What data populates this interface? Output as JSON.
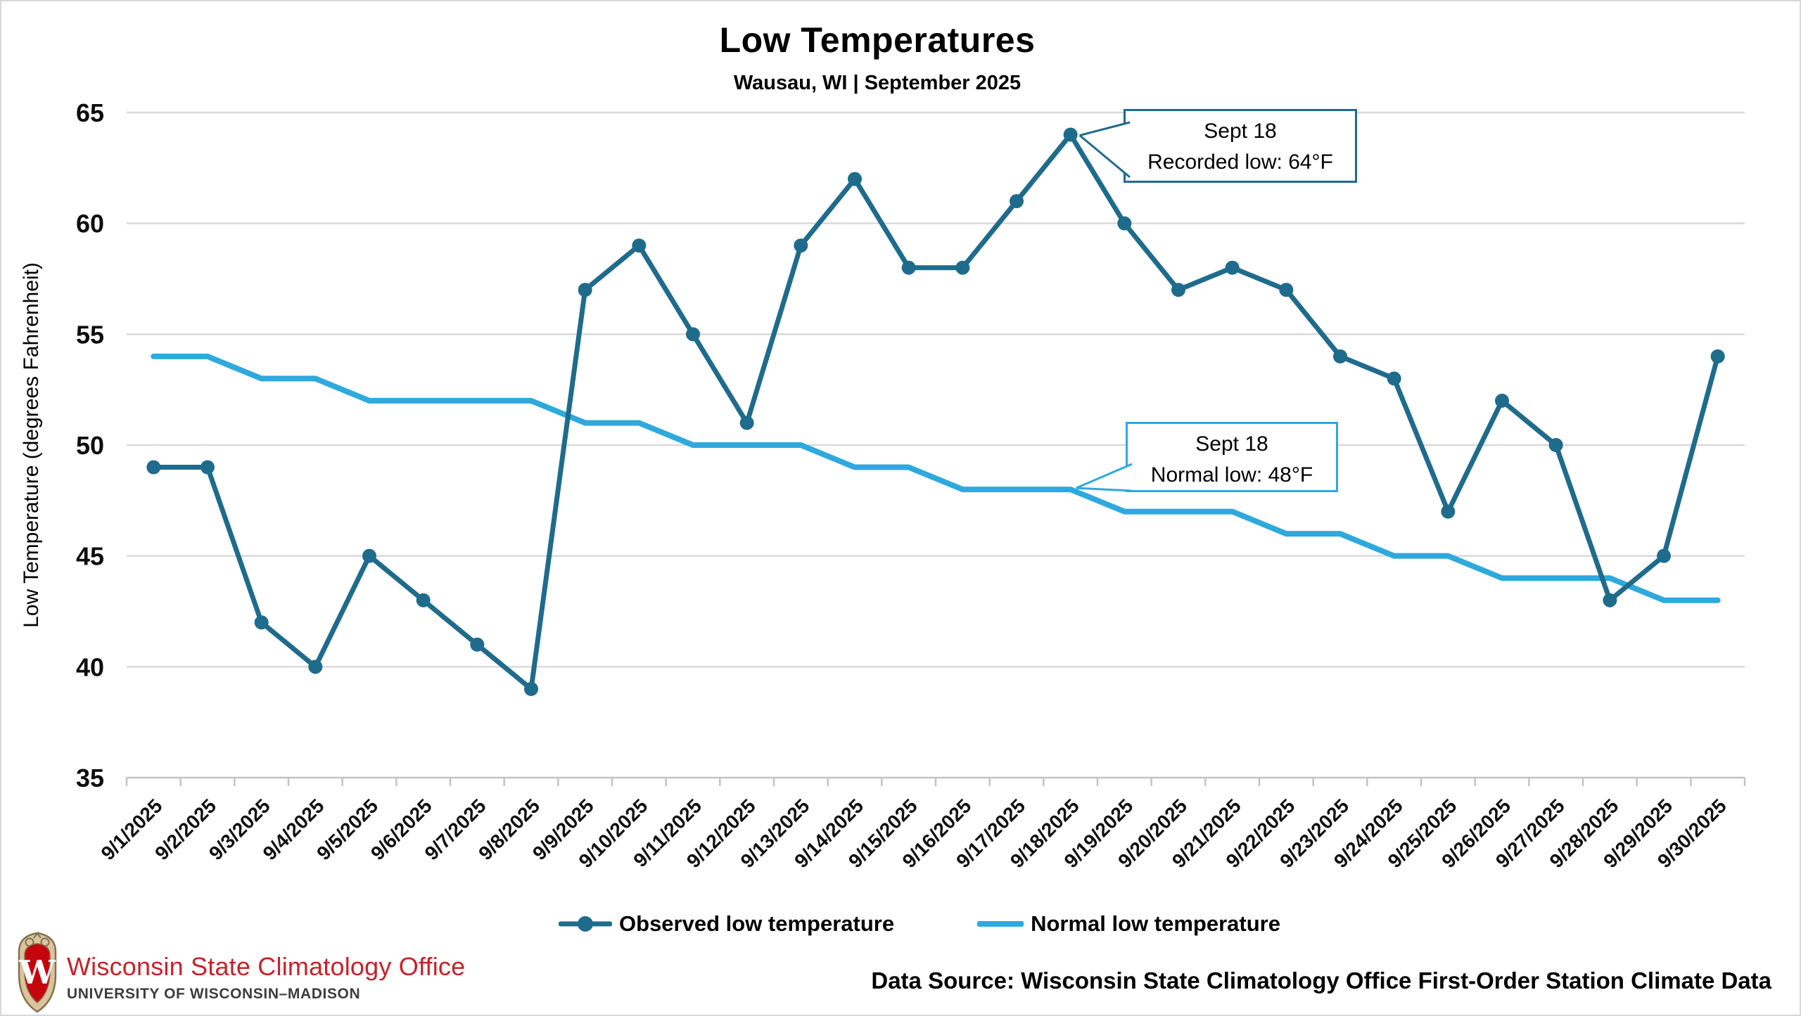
{
  "header": {
    "title": "Low Temperatures",
    "subtitle": "Wausau, WI | September 2025"
  },
  "chart_data": {
    "type": "line",
    "title": "Low Temperatures",
    "subtitle": "Wausau, WI | September 2025",
    "xlabel": "",
    "ylabel": "Low Temperature (degrees Fahrenheit)",
    "ylim": [
      35,
      65
    ],
    "y_ticks": [
      65,
      60,
      55,
      50,
      45,
      40,
      35
    ],
    "grid": "horizontal",
    "legend_position": "bottom",
    "categories": [
      "9/1/2025",
      "9/2/2025",
      "9/3/2025",
      "9/4/2025",
      "9/5/2025",
      "9/6/2025",
      "9/7/2025",
      "9/8/2025",
      "9/9/2025",
      "9/10/2025",
      "9/11/2025",
      "9/12/2025",
      "9/13/2025",
      "9/14/2025",
      "9/15/2025",
      "9/16/2025",
      "9/17/2025",
      "9/18/2025",
      "9/19/2025",
      "9/20/2025",
      "9/21/2025",
      "9/22/2025",
      "9/23/2025",
      "9/24/2025",
      "9/25/2025",
      "9/26/2025",
      "9/27/2025",
      "9/28/2025",
      "9/29/2025",
      "9/30/2025"
    ],
    "series": [
      {
        "name": "Observed low temperature",
        "color": "#1f6b8c",
        "marker": "circle",
        "values": [
          49,
          49,
          42,
          40,
          45,
          43,
          41,
          39,
          57,
          59,
          55,
          51,
          59,
          62,
          58,
          58,
          61,
          64,
          60,
          57,
          58,
          57,
          54,
          53,
          47,
          52,
          50,
          43,
          45,
          54
        ]
      },
      {
        "name": "Normal low temperature",
        "color": "#2ea9de",
        "marker": "none",
        "values": [
          54,
          54,
          53,
          53,
          52,
          52,
          52,
          52,
          51,
          51,
          50,
          50,
          50,
          49,
          49,
          48,
          48,
          48,
          47,
          47,
          47,
          46,
          46,
          45,
          45,
          44,
          44,
          44,
          43,
          43
        ]
      }
    ],
    "annotations": [
      {
        "lines": [
          "Sept 18",
          "Recorded low: 64°F"
        ],
        "series": 0,
        "index": 17,
        "value": 64,
        "border_color": "#1f6b8c"
      },
      {
        "lines": [
          "Sept 18",
          "Normal low: 48°F"
        ],
        "series": 1,
        "index": 17,
        "value": 48,
        "border_color": "#2ea9de"
      }
    ]
  },
  "legend": {
    "items": [
      {
        "label": "Observed low temperature"
      },
      {
        "label": "Normal low temperature"
      }
    ]
  },
  "footer": {
    "org_name": "Wisconsin State Climatology Office",
    "org_sub": "UNIVERSITY OF WISCONSIN–MADISON",
    "logo_monogram": "W",
    "data_source": "Data Source: Wisconsin State Climatology Office First-Order Station Climate Data"
  },
  "colors": {
    "observed": "#1f6b8c",
    "normal": "#2ea9de",
    "gridline": "#d9d9d9",
    "axis": "#c2c2c2",
    "uw_red": "#c5232b",
    "crest_red": "#c5050c",
    "crest_tan": "#d9c49e"
  }
}
